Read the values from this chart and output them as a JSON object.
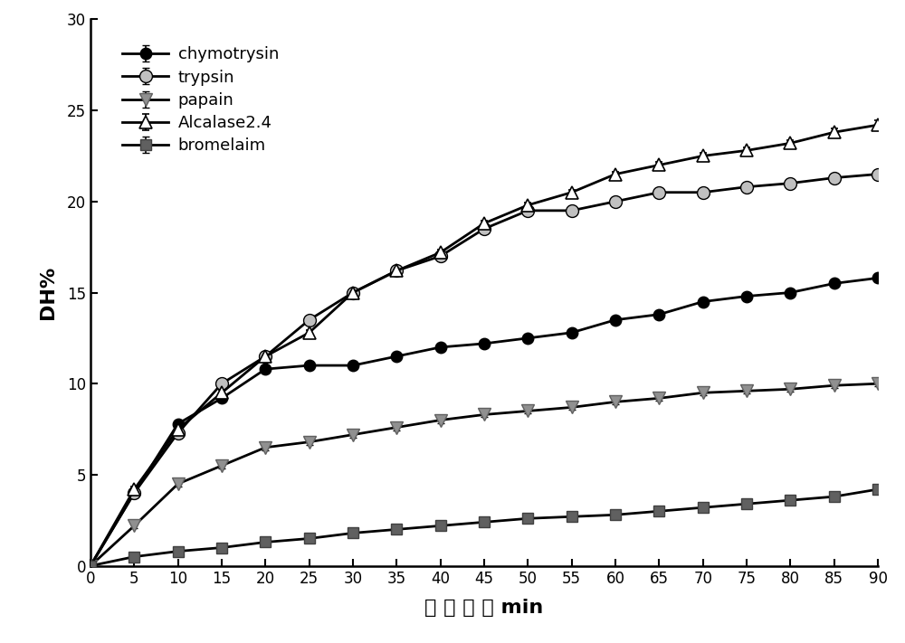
{
  "x": [
    0,
    5,
    10,
    15,
    20,
    25,
    30,
    35,
    40,
    45,
    50,
    55,
    60,
    65,
    70,
    75,
    80,
    85,
    90
  ],
  "chymotrysin": [
    0,
    4.0,
    7.8,
    9.2,
    10.8,
    11.0,
    11.0,
    11.5,
    12.0,
    12.2,
    12.5,
    12.8,
    13.5,
    13.8,
    14.5,
    14.8,
    15.0,
    15.5,
    15.8
  ],
  "trypsin": [
    0,
    4.0,
    7.3,
    10.0,
    11.5,
    13.5,
    15.0,
    16.2,
    17.0,
    18.5,
    19.5,
    19.5,
    20.0,
    20.5,
    20.5,
    20.8,
    21.0,
    21.3,
    21.5
  ],
  "papain": [
    0,
    2.2,
    4.5,
    5.5,
    6.5,
    6.8,
    7.2,
    7.6,
    8.0,
    8.3,
    8.5,
    8.7,
    9.0,
    9.2,
    9.5,
    9.6,
    9.7,
    9.9,
    10.0
  ],
  "alcalase": [
    0,
    4.2,
    7.5,
    9.5,
    11.5,
    12.8,
    15.0,
    16.2,
    17.2,
    18.8,
    19.8,
    20.5,
    21.5,
    22.0,
    22.5,
    22.8,
    23.2,
    23.8,
    24.2
  ],
  "bromelain": [
    0,
    0.5,
    0.8,
    1.0,
    1.3,
    1.5,
    1.8,
    2.0,
    2.2,
    2.4,
    2.6,
    2.7,
    2.8,
    3.0,
    3.2,
    3.4,
    3.6,
    3.8,
    4.2
  ],
  "chymotrysin_err": [
    0,
    0.15,
    0.2,
    0.15,
    0.15,
    0.15,
    0.15,
    0.15,
    0.15,
    0.15,
    0.15,
    0.15,
    0.15,
    0.15,
    0.15,
    0.15,
    0.15,
    0.2,
    0.2
  ],
  "trypsin_err": [
    0,
    0.15,
    0.2,
    0.2,
    0.15,
    0.15,
    0.15,
    0.15,
    0.15,
    0.2,
    0.15,
    0.15,
    0.15,
    0.15,
    0.15,
    0.15,
    0.15,
    0.2,
    0.25
  ],
  "papain_err": [
    0,
    0.15,
    0.15,
    0.15,
    0.15,
    0.15,
    0.15,
    0.15,
    0.15,
    0.15,
    0.15,
    0.15,
    0.15,
    0.15,
    0.15,
    0.15,
    0.15,
    0.15,
    0.15
  ],
  "alcalase_err": [
    0,
    0.15,
    0.15,
    0.15,
    0.15,
    0.15,
    0.15,
    0.15,
    0.15,
    0.15,
    0.15,
    0.15,
    0.15,
    0.15,
    0.15,
    0.15,
    0.15,
    0.2,
    0.25
  ],
  "bromelain_err": [
    0,
    0.08,
    0.08,
    0.08,
    0.08,
    0.08,
    0.08,
    0.08,
    0.08,
    0.08,
    0.08,
    0.08,
    0.08,
    0.08,
    0.08,
    0.08,
    0.08,
    0.08,
    0.08
  ],
  "ylim": [
    0,
    30
  ],
  "xlim": [
    0,
    90
  ],
  "yticks": [
    0,
    5,
    10,
    15,
    20,
    25,
    30
  ],
  "xticks": [
    0,
    5,
    10,
    15,
    20,
    25,
    30,
    35,
    40,
    45,
    50,
    55,
    60,
    65,
    70,
    75,
    80,
    85,
    90
  ],
  "ylabel": "DH%",
  "xlabel": "水 解 时 间 min",
  "legend_labels": [
    "chymotrysin",
    "trypsin",
    "papain",
    "Alcalase2.4",
    "bromelaim"
  ],
  "background_color": "#ffffff",
  "figsize": [
    10.0,
    7.11
  ],
  "dpi": 100
}
